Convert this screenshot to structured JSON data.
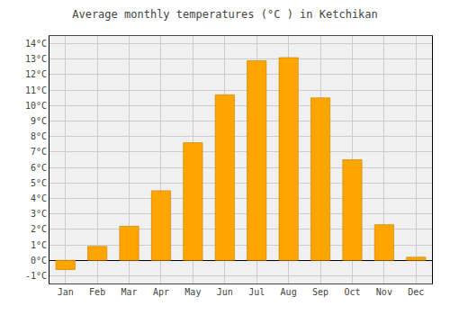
{
  "chart_data": {
    "type": "bar",
    "title": "Average monthly temperatures (°C ) in Ketchikan",
    "categories": [
      "Jan",
      "Feb",
      "Mar",
      "Apr",
      "May",
      "Jun",
      "Jul",
      "Aug",
      "Sep",
      "Oct",
      "Nov",
      "Dec"
    ],
    "values": [
      -0.6,
      0.9,
      2.2,
      4.5,
      7.6,
      10.7,
      12.9,
      13.1,
      10.5,
      6.5,
      2.3,
      0.2
    ],
    "color": "#FFA500",
    "ylim": [
      -1.5,
      14.5
    ],
    "yticks": [
      {
        "value": -1,
        "label": "-1°C"
      },
      {
        "value": 0,
        "label": "0°C"
      },
      {
        "value": 1,
        "label": "1°C"
      },
      {
        "value": 2,
        "label": "2°C"
      },
      {
        "value": 3,
        "label": "3°C"
      },
      {
        "value": 4,
        "label": "4°C"
      },
      {
        "value": 5,
        "label": "5°C"
      },
      {
        "value": 6,
        "label": "6°C"
      },
      {
        "value": 7,
        "label": "7°C"
      },
      {
        "value": 8,
        "label": "8°C"
      },
      {
        "value": 9,
        "label": "9°C"
      },
      {
        "value": 10,
        "label": "10°C"
      },
      {
        "value": 11,
        "label": "11°C"
      },
      {
        "value": 12,
        "label": "12°C"
      },
      {
        "value": 13,
        "label": "13°C"
      },
      {
        "value": 14,
        "label": "14°C"
      }
    ],
    "grid": true
  }
}
